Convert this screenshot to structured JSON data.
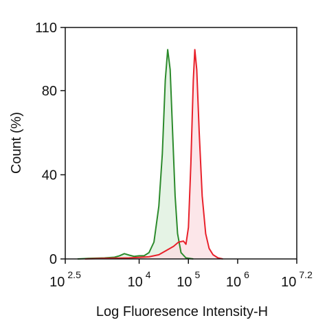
{
  "chart_data": {
    "type": "histogram-overlay",
    "xlabel": "Log Fluoresence Intensity-H",
    "ylabel": "Count  (%)",
    "xscale": "log",
    "xlim": [
      316.227766,
      15848931.92
    ],
    "xticks": [
      {
        "value": 316.227766,
        "label": "10",
        "power": "2.5"
      },
      {
        "value": 10000,
        "label": "10",
        "power": "4"
      },
      {
        "value": 100000,
        "label": "10",
        "power": "5"
      },
      {
        "value": 1000000,
        "label": "10",
        "power": "6"
      },
      {
        "value": 15848931.92,
        "label": "10",
        "power": "7.2"
      }
    ],
    "ylim": [
      0,
      110
    ],
    "yticks": [
      0,
      40,
      80,
      110
    ],
    "series": [
      {
        "color": "#2b8a2b",
        "fill": "#dcefdc",
        "x": [
          562,
          1000,
          1995,
          3162,
          3981,
          5012,
          6310,
          7943,
          10000,
          12589,
          15849,
          19953,
          25119,
          29512,
          33884,
          38019,
          42658,
          47863,
          53703,
          60256,
          70795,
          89125,
          125893
        ],
        "values": [
          0,
          0.3,
          0.5,
          0.8,
          1.5,
          2.5,
          1.8,
          1.2,
          1.5,
          1.5,
          3,
          8,
          25,
          50,
          85,
          99.5,
          90,
          60,
          30,
          12,
          3,
          0.5,
          0
        ]
      },
      {
        "color": "#e8202a",
        "fill": "#fbdde2",
        "x": [
          794,
          1995,
          6310,
          15849,
          25119,
          35481,
          50119,
          63096,
          79433,
          89125,
          100000,
          112202,
          125893,
          134896,
          147911,
          165959,
          190546,
          223872,
          263027,
          316228,
          398107,
          501187
        ],
        "values": [
          0,
          0.3,
          0.5,
          1,
          2,
          4,
          6,
          8,
          8.5,
          7,
          15,
          45,
          85,
          99.5,
          90,
          60,
          30,
          12,
          5,
          2,
          0.5,
          0
        ]
      }
    ]
  }
}
